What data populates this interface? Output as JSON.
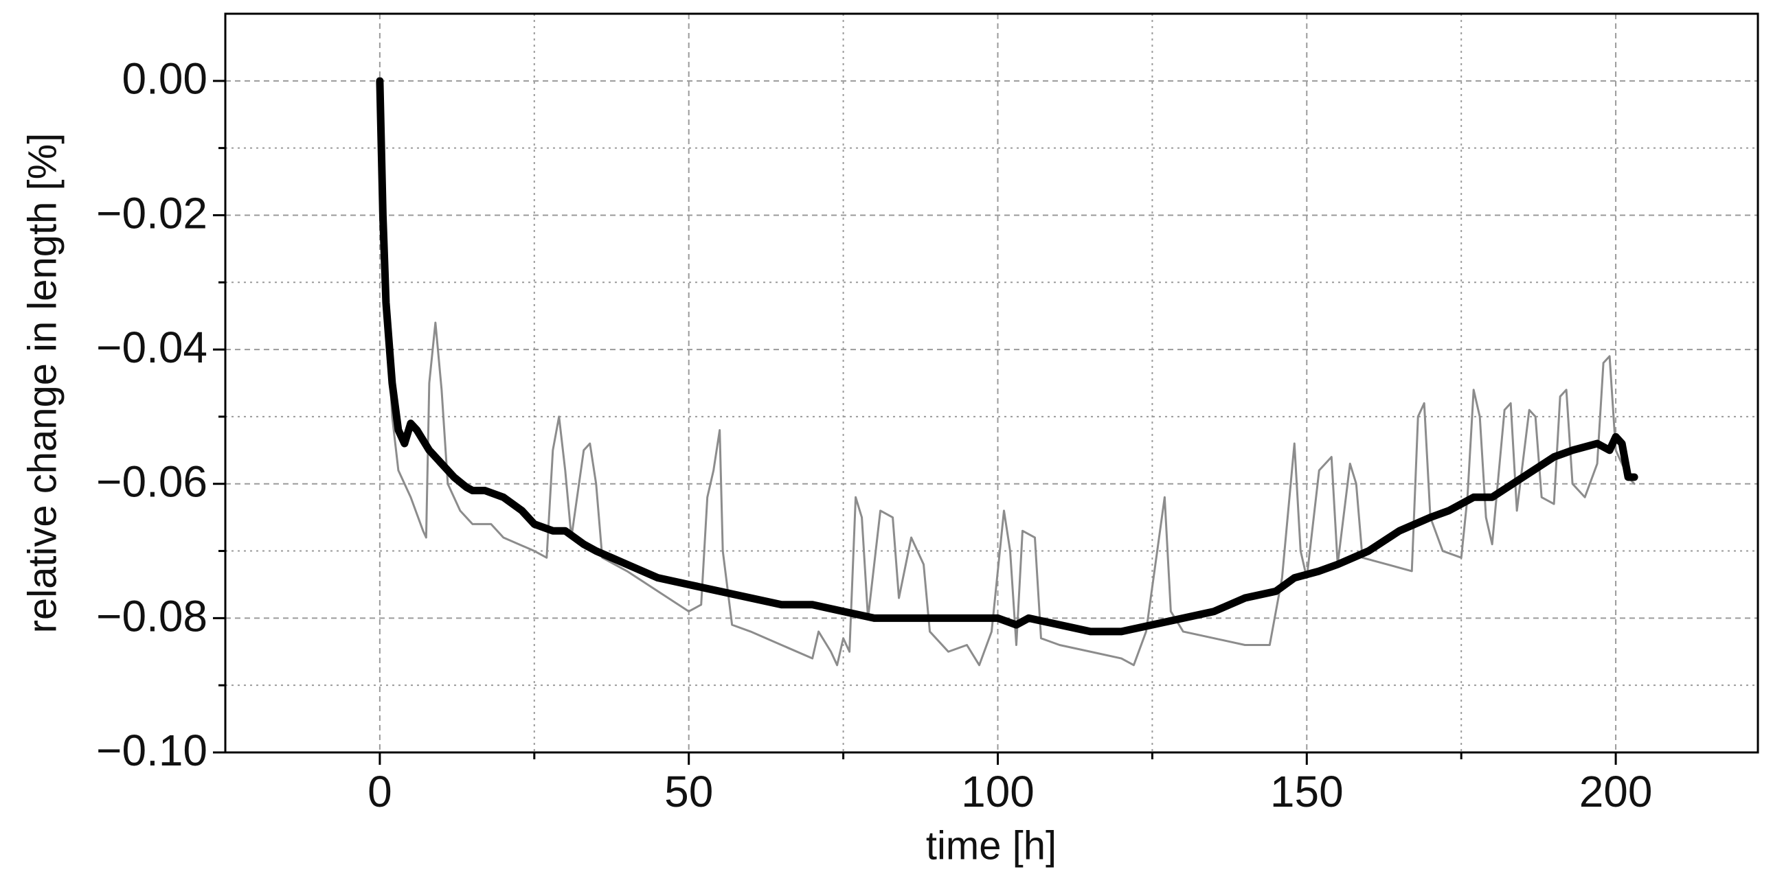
{
  "chart_data": {
    "type": "line",
    "xlabel": "time [h]",
    "ylabel": "relative change in length [%]",
    "xlim": [
      -25,
      223
    ],
    "ylim": [
      -0.1,
      0.01
    ],
    "xticks": [
      0,
      50,
      100,
      150,
      200
    ],
    "xminorticks": [
      25,
      75,
      125,
      175
    ],
    "yticks": [
      {
        "value": 0,
        "label": "0.00"
      },
      {
        "value": -0.02,
        "label": "−0.02"
      },
      {
        "value": -0.04,
        "label": "−0.04"
      },
      {
        "value": -0.06,
        "label": "−0.06"
      },
      {
        "value": -0.08,
        "label": "−0.08"
      },
      {
        "value": -0.1,
        "label": "−0.10"
      }
    ],
    "yminorticks": [
      -0.01,
      -0.03,
      -0.05,
      -0.07,
      -0.09
    ],
    "grid": true,
    "series": [
      {
        "color": "#8c8c8c",
        "width": 3,
        "x": [
          0,
          1,
          2,
          3,
          5,
          7,
          7.5,
          8,
          9,
          10,
          11,
          13,
          15,
          18,
          20,
          25,
          27,
          28,
          29,
          30,
          31,
          33,
          34,
          35,
          36,
          40,
          45,
          50,
          52,
          53,
          54,
          55,
          55.5,
          57,
          60,
          65,
          70,
          71,
          73,
          74,
          75,
          76,
          77,
          78,
          79,
          81,
          83,
          84,
          86,
          88,
          89,
          92,
          95,
          97,
          99,
          101,
          102,
          103,
          104,
          106,
          107,
          110,
          115,
          120,
          122,
          124,
          127,
          128,
          130,
          135,
          140,
          144,
          146,
          148,
          149,
          150,
          152,
          154,
          155,
          157,
          158,
          159,
          163,
          167,
          168,
          169,
          170,
          172,
          175,
          176,
          177,
          178,
          179,
          180,
          182,
          183,
          184,
          186,
          187,
          188,
          190,
          191,
          192,
          193,
          195,
          197,
          198,
          199,
          200,
          202,
          203
        ],
        "values": [
          0,
          -0.033,
          -0.05,
          -0.058,
          -0.062,
          -0.067,
          -0.068,
          -0.045,
          -0.036,
          -0.046,
          -0.06,
          -0.064,
          -0.066,
          -0.066,
          -0.068,
          -0.07,
          -0.071,
          -0.055,
          -0.05,
          -0.058,
          -0.068,
          -0.055,
          -0.054,
          -0.06,
          -0.071,
          -0.073,
          -0.076,
          -0.079,
          -0.078,
          -0.062,
          -0.058,
          -0.052,
          -0.07,
          -0.081,
          -0.082,
          -0.084,
          -0.086,
          -0.082,
          -0.085,
          -0.087,
          -0.083,
          -0.085,
          -0.062,
          -0.065,
          -0.08,
          -0.064,
          -0.065,
          -0.077,
          -0.068,
          -0.072,
          -0.082,
          -0.085,
          -0.084,
          -0.087,
          -0.082,
          -0.064,
          -0.07,
          -0.084,
          -0.067,
          -0.068,
          -0.083,
          -0.084,
          -0.085,
          -0.086,
          -0.087,
          -0.082,
          -0.062,
          -0.079,
          -0.082,
          -0.083,
          -0.084,
          -0.084,
          -0.074,
          -0.054,
          -0.07,
          -0.074,
          -0.058,
          -0.056,
          -0.072,
          -0.057,
          -0.06,
          -0.071,
          -0.072,
          -0.073,
          -0.05,
          -0.048,
          -0.065,
          -0.07,
          -0.071,
          -0.062,
          -0.046,
          -0.05,
          -0.065,
          -0.069,
          -0.049,
          -0.048,
          -0.064,
          -0.049,
          -0.05,
          -0.062,
          -0.063,
          -0.047,
          -0.046,
          -0.06,
          -0.062,
          -0.057,
          -0.042,
          -0.041,
          -0.055,
          -0.059,
          -0.06
        ]
      },
      {
        "color": "#000000",
        "width": 11,
        "x": [
          0,
          0.5,
          1,
          2,
          3,
          4,
          5,
          6,
          8,
          10,
          12,
          14,
          15,
          17,
          20,
          23,
          25,
          28,
          30,
          33,
          35,
          40,
          45,
          50,
          55,
          60,
          65,
          70,
          75,
          80,
          85,
          90,
          95,
          100,
          103,
          105,
          110,
          115,
          120,
          125,
          130,
          135,
          140,
          145,
          148,
          152,
          155,
          160,
          165,
          170,
          173,
          177,
          180,
          185,
          190,
          193,
          197,
          199,
          200,
          201,
          202,
          203
        ],
        "values": [
          0,
          -0.02,
          -0.033,
          -0.045,
          -0.052,
          -0.054,
          -0.051,
          -0.052,
          -0.055,
          -0.057,
          -0.059,
          -0.0605,
          -0.061,
          -0.061,
          -0.062,
          -0.064,
          -0.066,
          -0.067,
          -0.067,
          -0.069,
          -0.07,
          -0.072,
          -0.074,
          -0.075,
          -0.076,
          -0.077,
          -0.078,
          -0.078,
          -0.079,
          -0.08,
          -0.08,
          -0.08,
          -0.08,
          -0.08,
          -0.081,
          -0.08,
          -0.081,
          -0.082,
          -0.082,
          -0.081,
          -0.08,
          -0.079,
          -0.077,
          -0.076,
          -0.074,
          -0.073,
          -0.072,
          -0.07,
          -0.067,
          -0.065,
          -0.064,
          -0.062,
          -0.062,
          -0.059,
          -0.056,
          -0.055,
          -0.054,
          -0.055,
          -0.053,
          -0.054,
          -0.059,
          -0.059
        ]
      }
    ]
  }
}
